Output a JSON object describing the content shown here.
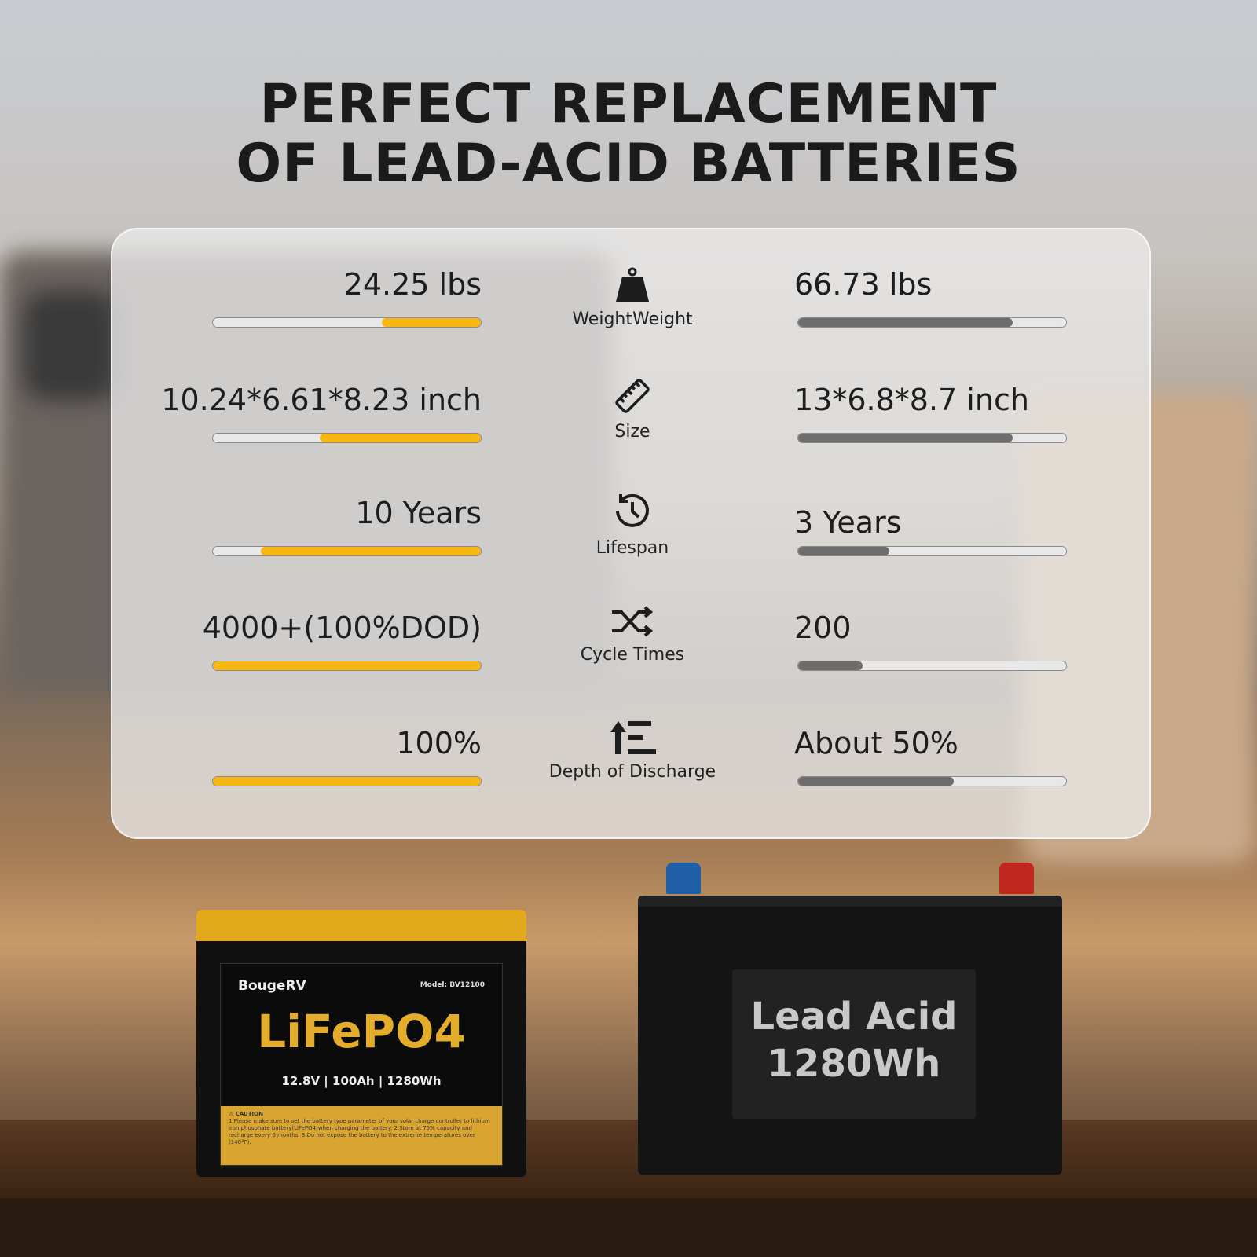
{
  "title_line1": "PERFECT REPLACEMENT",
  "title_line2": "OF LEAD-ACID BATTERIES",
  "colors": {
    "lifepo4_bar": "#f7b614",
    "lead_acid_bar": "#6d6d6d",
    "panel": "#ebebeb"
  },
  "rows": [
    {
      "label": "WeightWeight",
      "icon": "weight-icon",
      "left": "24.25 lbs",
      "right": "66.73 lbs",
      "left_fill": 0.37,
      "right_fill": 0.8
    },
    {
      "label": "Size",
      "icon": "ruler-icon",
      "left": "10.24*6.61*8.23 inch",
      "right": "13*6.8*8.7 inch",
      "left_fill": 0.6,
      "right_fill": 0.8
    },
    {
      "label": "Lifespan",
      "icon": "clock-history-icon",
      "left": "10 Years",
      "right": "3 Years",
      "left_fill": 0.82,
      "right_fill": 0.34
    },
    {
      "label": "Cycle Times",
      "icon": "shuffle-icon",
      "left": "4000+(100%DOD)",
      "right": "200",
      "left_fill": 1.0,
      "right_fill": 0.24
    },
    {
      "label": "Depth of Discharge",
      "icon": "depth-icon",
      "left": "100%",
      "right": "About 50%",
      "left_fill": 1.0,
      "right_fill": 0.58
    }
  ],
  "lifepo4": {
    "brand": "BougeRV",
    "model": "Model: BV12100",
    "chem": "LiFePO4",
    "spec": "12.8V | 100Ah | 1280Wh",
    "caution_title": "⚠ CAUTION",
    "caution_text": "1.Please make sure to set the battery type parameter of your solar charge controller to lithium iron phosphate battery(LiFePO4)when charging the battery. 2.Store at 75% capacity and recharge every 6 months. 3.Do not expose the battery to the extreme temperatures over (140°F)."
  },
  "lead_acid": {
    "line1": "Lead Acid",
    "line2": "1280Wh"
  }
}
